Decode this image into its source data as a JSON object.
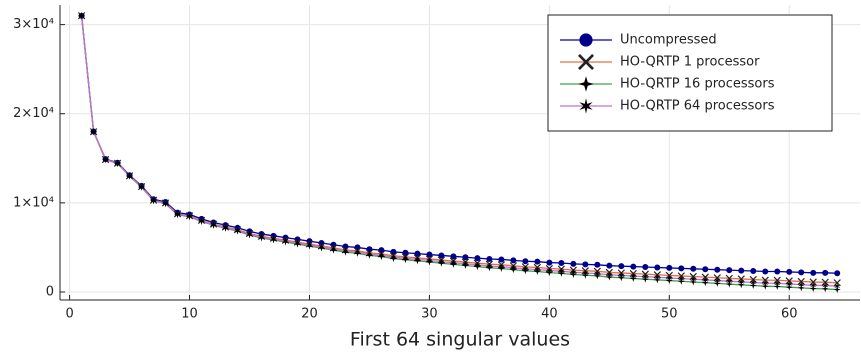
{
  "chart_data": {
    "type": "line",
    "xlabel": "First 64 singular values",
    "x": [
      1,
      2,
      3,
      4,
      5,
      6,
      7,
      8,
      9,
      10,
      11,
      12,
      13,
      14,
      15,
      16,
      17,
      18,
      19,
      20,
      21,
      22,
      23,
      24,
      25,
      26,
      27,
      28,
      29,
      30,
      31,
      32,
      33,
      34,
      35,
      36,
      37,
      38,
      39,
      40,
      41,
      42,
      43,
      44,
      45,
      46,
      47,
      48,
      49,
      50,
      51,
      52,
      53,
      54,
      55,
      56,
      57,
      58,
      59,
      60,
      61,
      62,
      63,
      64
    ],
    "series": [
      {
        "name": "Uncompressed",
        "color": "#0000aa",
        "marker": "circle",
        "marker_color": "#00008b",
        "values": [
          31000,
          18000,
          14900,
          14500,
          13100,
          11900,
          10400,
          10100,
          8900,
          8700,
          8200,
          7800,
          7500,
          7200,
          6800,
          6500,
          6300,
          6100,
          5900,
          5700,
          5500,
          5300,
          5100,
          5000,
          4800,
          4700,
          4500,
          4400,
          4300,
          4200,
          4100,
          4000,
          3900,
          3800,
          3700,
          3650,
          3550,
          3450,
          3400,
          3300,
          3250,
          3150,
          3100,
          3050,
          2950,
          2900,
          2850,
          2800,
          2750,
          2700,
          2650,
          2600,
          2550,
          2500,
          2450,
          2400,
          2350,
          2300,
          2300,
          2250,
          2200,
          2150,
          2150,
          2100
        ]
      },
      {
        "name": "HO-QRTP 1 processor",
        "color": "#e26f46",
        "marker": "x",
        "marker_color": "#222222",
        "values": [
          31000,
          17983,
          14866,
          14449,
          13032,
          11815,
          10298,
          9981,
          8764,
          8547,
          8030,
          7613,
          7296,
          6979,
          6562,
          6245,
          6028,
          5811,
          5594,
          5377,
          5160,
          4943,
          4726,
          4609,
          4392,
          4275,
          4058,
          3941,
          3824,
          3707,
          3590,
          3473,
          3356,
          3239,
          3122,
          3055,
          2938,
          2821,
          2754,
          2637,
          2570,
          2453,
          2386,
          2319,
          2202,
          2135,
          2068,
          2001,
          1934,
          1867,
          1800,
          1733,
          1666,
          1599,
          1532,
          1465,
          1398,
          1331,
          1314,
          1247,
          1180,
          1113,
          1096,
          1029
        ]
      },
      {
        "name": "HO-QRTP 16 processors",
        "color": "#3da44d",
        "marker": "star4",
        "marker_color": "#000000",
        "values": [
          31000,
          17971,
          14842,
          14413,
          12984,
          11755,
          10226,
          9897,
          8668,
          8439,
          7910,
          7481,
          7152,
          6823,
          6394,
          6065,
          5836,
          5607,
          5378,
          5149,
          4920,
          4691,
          4462,
          4333,
          4104,
          3975,
          3746,
          3617,
          3488,
          3359,
          3230,
          3101,
          2972,
          2843,
          2714,
          2635,
          2506,
          2377,
          2298,
          2169,
          2090,
          1961,
          1882,
          1803,
          1674,
          1595,
          1516,
          1437,
          1358,
          1279,
          1200,
          1121,
          1042,
          963,
          884,
          805,
          726,
          647,
          618,
          539,
          460,
          381,
          352,
          273
        ]
      },
      {
        "name": "HO-QRTP 64 processors",
        "color": "#c271d2",
        "marker": "star6",
        "marker_color": "#000000",
        "values": [
          31000,
          17977,
          14854,
          14431,
          13008,
          11785,
          10262,
          9939,
          8716,
          8493,
          7970,
          7547,
          7224,
          6901,
          6478,
          6155,
          5932,
          5709,
          5486,
          5263,
          5040,
          4817,
          4594,
          4471,
          4248,
          4125,
          3902,
          3779,
          3656,
          3533,
          3410,
          3287,
          3164,
          3041,
          2918,
          2845,
          2722,
          2599,
          2526,
          2403,
          2330,
          2207,
          2134,
          2061,
          1938,
          1865,
          1792,
          1719,
          1646,
          1573,
          1500,
          1427,
          1354,
          1281,
          1208,
          1135,
          1062,
          989,
          966,
          893,
          820,
          747,
          724,
          651
        ]
      }
    ],
    "xlim": [
      -0.8,
      65.9
    ],
    "xticks": [
      0,
      10,
      20,
      30,
      40,
      50,
      60
    ],
    "ylim": [
      -900,
      32200
    ],
    "yticks": [
      0,
      {
        "value": 10000,
        "label": "1×10⁴"
      },
      {
        "value": 20000,
        "label": "2×10⁴"
      },
      {
        "value": 30000,
        "label": "3×10⁴"
      }
    ],
    "grid": true,
    "legend": "top-right"
  }
}
